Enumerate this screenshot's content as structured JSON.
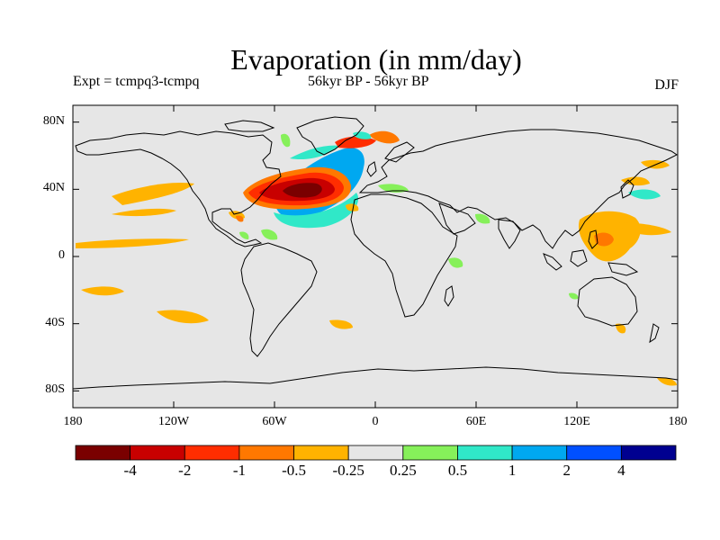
{
  "title": "Evaporation (in mm/day)",
  "subtitle_left": "Expt = tcmpq3-tcmpq",
  "subtitle_center": "56kyr BP - 56kyr BP",
  "subtitle_right": "DJF",
  "lat_ticks": [
    "80N",
    "40N",
    "0",
    "40S",
    "80S"
  ],
  "lat_values": [
    80,
    40,
    0,
    -40,
    -80
  ],
  "lon_ticks": [
    "180",
    "120W",
    "60W",
    "0",
    "60E",
    "120E",
    "180"
  ],
  "lon_values": [
    -180,
    -120,
    -60,
    0,
    60,
    120,
    180
  ],
  "colorbar": {
    "labels": [
      "-4",
      "-2",
      "-1",
      "-0.5",
      "-0.25",
      "0.25",
      "0.5",
      "1",
      "2",
      "4"
    ],
    "colors": [
      "#7a0000",
      "#c80000",
      "#ff2d00",
      "#ff7800",
      "#ffb300",
      "#e6e6e6",
      "#86f05a",
      "#30e8c8",
      "#00a8f0",
      "#0050ff",
      "#000090"
    ]
  },
  "map": {
    "background": "#e6e6e6",
    "lon_range": [
      -180,
      180
    ],
    "lat_range": [
      -90,
      90
    ]
  }
}
